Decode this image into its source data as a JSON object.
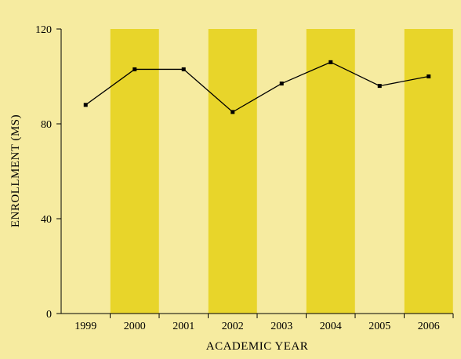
{
  "chart_data": {
    "type": "line",
    "title": "",
    "xlabel": "ACADEMIC YEAR",
    "ylabel": "ENROLLMENT (MS)",
    "categories": [
      "1999",
      "2000",
      "2001",
      "2002",
      "2003",
      "2004",
      "2005",
      "2006"
    ],
    "series": [
      {
        "values": [
          88,
          103,
          103,
          85,
          97,
          106,
          96,
          100
        ]
      }
    ],
    "ylim": [
      0,
      120
    ],
    "yticks": [
      "0",
      "40",
      "80",
      "120"
    ],
    "highlight_bands": [
      "2000",
      "2002",
      "2004",
      "2006"
    ],
    "grid": false,
    "colors": {
      "background": "#f6eba0",
      "band": "#e8d52a",
      "line": "#000000",
      "marker": "#000000"
    }
  }
}
